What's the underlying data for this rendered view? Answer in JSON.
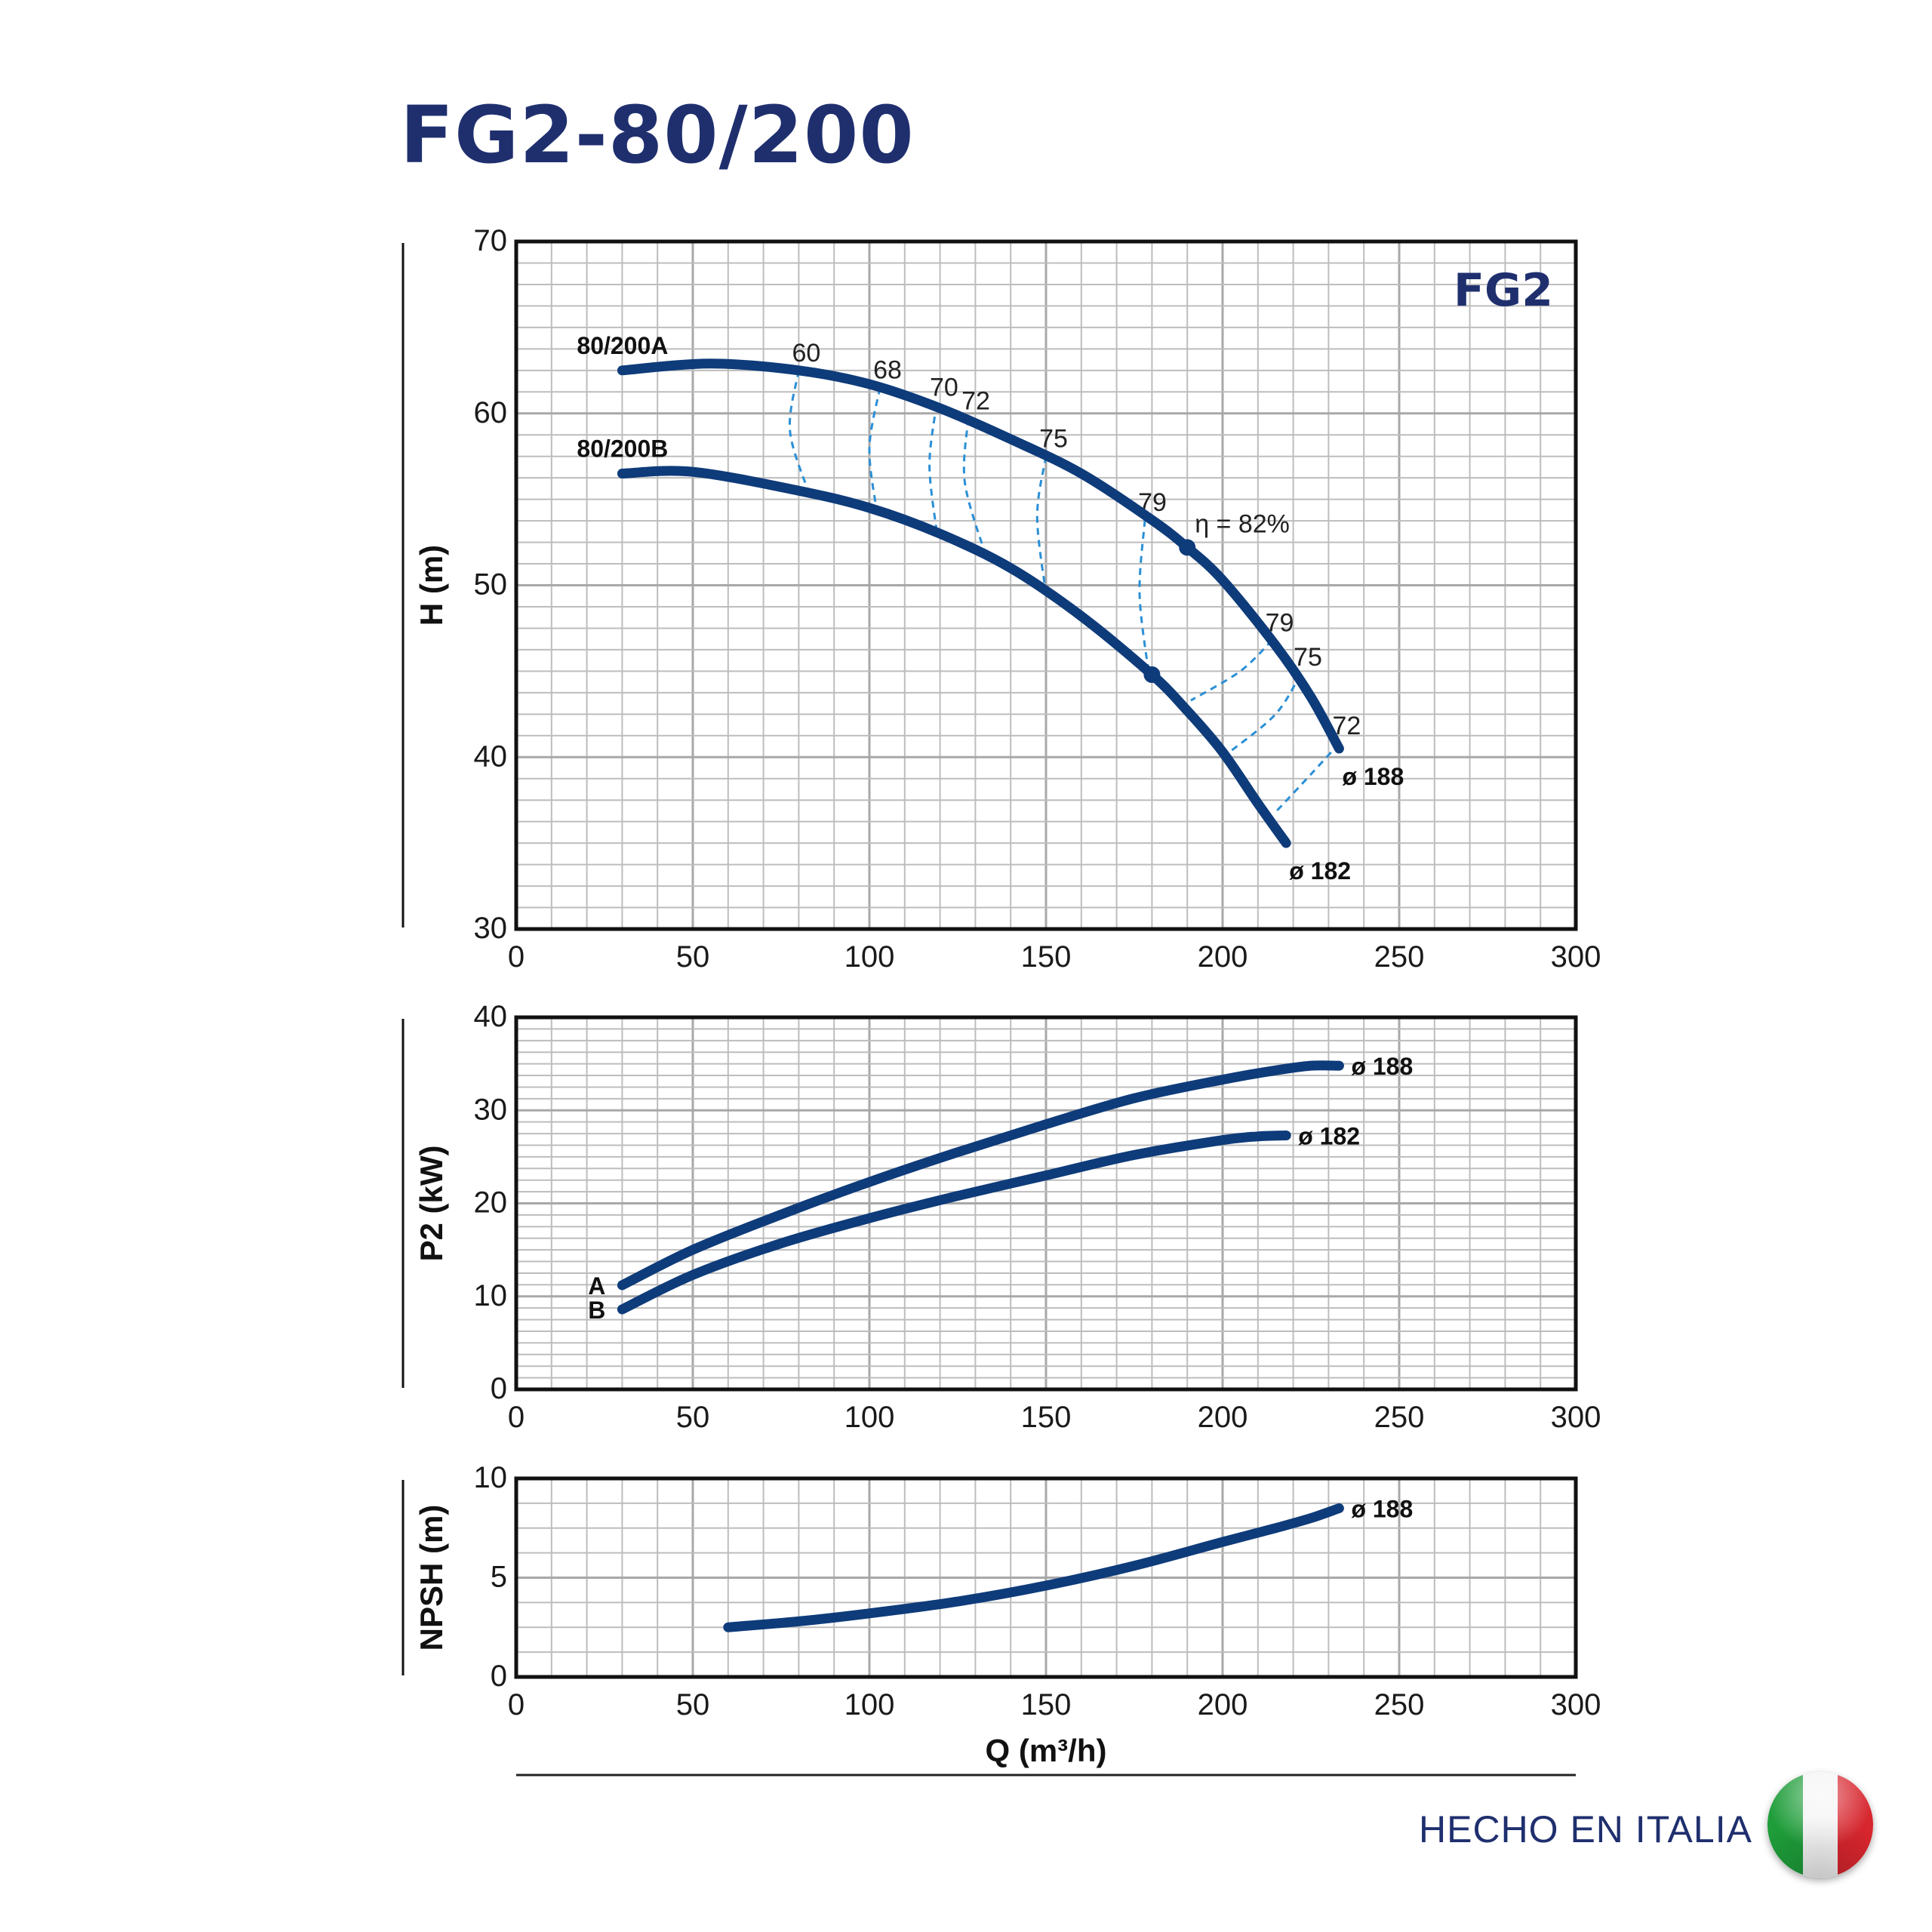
{
  "title": "FG2-80/200",
  "footer": {
    "text": "HECHO EN ITALIA",
    "flag_icon": "italy-flag-icon"
  },
  "colors": {
    "curve": "#0e3b7a",
    "efficiency": "#2a8fd6",
    "grid": "#bdbdbd",
    "title": "#1f2f6e"
  },
  "chart_data": [
    {
      "type": "line",
      "id": "head",
      "corner_label": "FG2",
      "xlabel": "",
      "ylabel": "H (m)",
      "xlim": [
        0,
        300
      ],
      "ylim": [
        30,
        70
      ],
      "x_ticks": [
        0,
        50,
        100,
        150,
        200,
        250,
        300
      ],
      "y_ticks": [
        30,
        40,
        50,
        60,
        70
      ],
      "grid": true,
      "series": [
        {
          "name": "80/200A",
          "end_label": "ø 188",
          "x": [
            30,
            55,
            80,
            100,
            120,
            140,
            160,
            180,
            190,
            200,
            215,
            225,
            233
          ],
          "y": [
            62.5,
            62.9,
            62.5,
            61.7,
            60.3,
            58.5,
            56.5,
            53.8,
            52.2,
            50.3,
            46.5,
            43.5,
            40.5
          ]
        },
        {
          "name": "80/200B",
          "end_label": "ø 182",
          "x": [
            30,
            50,
            80,
            100,
            120,
            140,
            160,
            180,
            190,
            200,
            210,
            218
          ],
          "y": [
            56.5,
            56.6,
            55.5,
            54.5,
            53,
            51,
            48.2,
            44.8,
            42.7,
            40.3,
            37.3,
            35
          ]
        }
      ],
      "efficiency_lines": [
        {
          "label": "60",
          "x": [
            80,
            77.5,
            83
          ],
          "y": [
            62.5,
            59,
            55.3
          ]
        },
        {
          "label": "68",
          "x": [
            103,
            100,
            102
          ],
          "y": [
            61.5,
            58,
            54.4
          ]
        },
        {
          "label": "70",
          "x": [
            119,
            117,
            119
          ],
          "y": [
            60.5,
            57,
            53.2
          ]
        },
        {
          "label": "72",
          "x": [
            128,
            127,
            133
          ],
          "y": [
            59.7,
            56,
            51.7
          ]
        },
        {
          "label": "75",
          "x": [
            150,
            147.5,
            150
          ],
          "y": [
            57.5,
            54,
            49.5
          ]
        },
        {
          "label": "79",
          "x": [
            178,
            176.5,
            179
          ],
          "y": [
            53.8,
            49.5,
            45
          ]
        },
        {
          "label": "79",
          "x": [
            214,
            205,
            191
          ],
          "y": [
            46.8,
            45,
            43.3
          ]
        },
        {
          "label": "75",
          "x": [
            222,
            215,
            202
          ],
          "y": [
            44.8,
            42.5,
            40.3
          ]
        },
        {
          "label": "72",
          "x": [
            233,
            225,
            215
          ],
          "y": [
            40.8,
            39,
            36.8
          ]
        }
      ],
      "best_efficiency": {
        "label": "η = 82%",
        "points": [
          {
            "x": 190,
            "y": 52.2
          },
          {
            "x": 180,
            "y": 44.8
          }
        ]
      }
    },
    {
      "type": "line",
      "id": "power",
      "xlabel": "",
      "ylabel": "P2 (kW)",
      "xlim": [
        0,
        300
      ],
      "ylim": [
        0,
        40
      ],
      "x_ticks": [
        0,
        50,
        100,
        150,
        200,
        250,
        300
      ],
      "y_ticks": [
        0,
        10,
        20,
        30,
        40
      ],
      "grid": true,
      "series": [
        {
          "name": "A",
          "end_label": "ø 188",
          "x": [
            30,
            50,
            75,
            100,
            125,
            150,
            175,
            200,
            215,
            225,
            233
          ],
          "y": [
            11.2,
            15,
            18.8,
            22.3,
            25.5,
            28.5,
            31.3,
            33.3,
            34.3,
            34.8,
            34.8
          ]
        },
        {
          "name": "B",
          "end_label": "ø 182",
          "x": [
            30,
            50,
            75,
            100,
            125,
            150,
            175,
            200,
            210,
            218
          ],
          "y": [
            8.6,
            12.3,
            15.7,
            18.4,
            20.8,
            23,
            25.2,
            26.8,
            27.2,
            27.3
          ]
        }
      ]
    },
    {
      "type": "line",
      "id": "npsh",
      "xlabel": "Q (m³/h)",
      "ylabel": "NPSH (m)",
      "xlim": [
        0,
        300
      ],
      "ylim": [
        0,
        10
      ],
      "x_ticks": [
        0,
        50,
        100,
        150,
        200,
        250,
        300
      ],
      "y_ticks": [
        0,
        5,
        10
      ],
      "grid": true,
      "series": [
        {
          "end_label": "ø 188",
          "x": [
            60,
            80,
            100,
            125,
            150,
            175,
            200,
            215,
            225,
            233
          ],
          "y": [
            2.5,
            2.8,
            3.2,
            3.8,
            4.6,
            5.6,
            6.8,
            7.5,
            8,
            8.5
          ]
        }
      ]
    }
  ]
}
